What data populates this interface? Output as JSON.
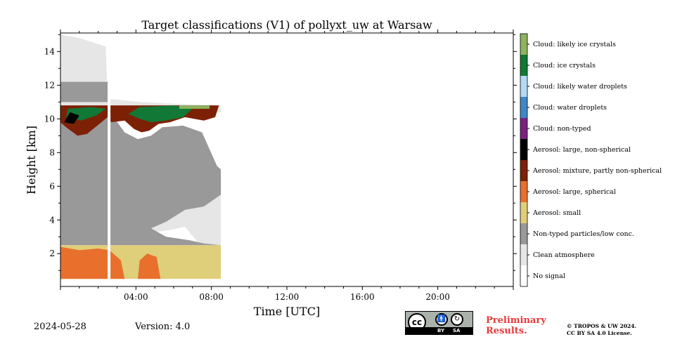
{
  "chart_data": {
    "type": "heatmap",
    "title": "Target classifications (V1) of pollyxt_uw at Warsaw",
    "xlabel": "Time [UTC]",
    "ylabel": "Height [km]",
    "xlim_hours": [
      0,
      24
    ],
    "ylim_km": [
      0.05,
      15.1
    ],
    "x_ticks": [
      "04:00",
      "08:00",
      "12:00",
      "16:00",
      "20:00"
    ],
    "x_tick_hours": [
      4,
      8,
      12,
      16,
      20
    ],
    "y_ticks": [
      2,
      4,
      6,
      8,
      10,
      12,
      14
    ],
    "data_coverage_hours": [
      0,
      8.5
    ],
    "data_gap_hours": [
      2.5,
      2.65
    ],
    "layers": [
      {
        "class": "Aerosol: large, spherical",
        "from_km": 0.5,
        "to_km": 2.4
      },
      {
        "class": "Aerosol: small",
        "from_km": 0.5,
        "to_km": 2.5
      },
      {
        "class": "Non-typed particles/low conc.",
        "from_km": 2.5,
        "to_km": 10.5
      },
      {
        "class": "Clean atmosphere",
        "from_km": 2.5,
        "to_km": 10.5
      },
      {
        "class": "Cloud: ice crystals",
        "from_km": 9.2,
        "to_km": 10.8
      },
      {
        "class": "Aerosol: mixture, partly non-spherical",
        "from_km": 9.0,
        "to_km": 10.8
      }
    ],
    "legend": [
      {
        "label": "Cloud: likely ice crystals",
        "color": "#8fb35e"
      },
      {
        "label": "Cloud: ice crystals",
        "color": "#117836"
      },
      {
        "label": "Cloud: likely water droplets",
        "color": "#b3d9f5"
      },
      {
        "label": "Cloud: water droplets",
        "color": "#3f88c5"
      },
      {
        "label": "Cloud: non-typed",
        "color": "#7a2180"
      },
      {
        "label": "Aerosol: large, non-spherical",
        "color": "#000000"
      },
      {
        "label": "Aerosol: mixture, partly non-spherical",
        "color": "#7d2106"
      },
      {
        "label": "Aerosol: large, spherical",
        "color": "#e8702c"
      },
      {
        "label": "Aerosol: small",
        "color": "#dfce7a"
      },
      {
        "label": "Non-typed particles/low conc.",
        "color": "#999999"
      },
      {
        "label": "Clean atmosphere",
        "color": "#e6e6e6"
      },
      {
        "label": "No signal",
        "color": "#ffffff"
      }
    ],
    "legend_placement": "right"
  },
  "footer": {
    "date": "2024-05-28",
    "version": "Version: 4.0",
    "preliminary_line1": "Preliminary",
    "preliminary_line2": "Results.",
    "copyright_line1": "© TROPOS & UW 2024.",
    "copyright_line2": "CC BY SA 4.0 License.",
    "cc_badge": {
      "cc": "cc",
      "by": "BY",
      "sa": "SA"
    }
  }
}
